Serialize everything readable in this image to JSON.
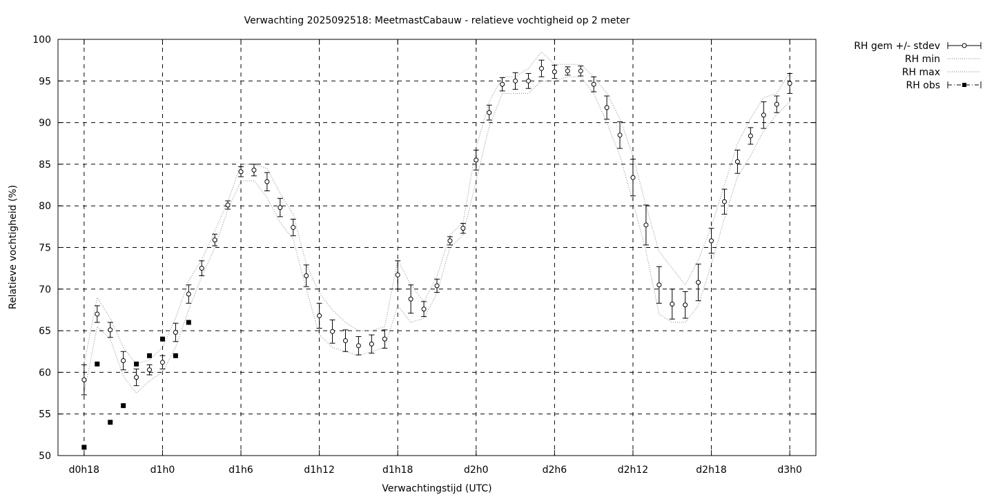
{
  "chart_data": {
    "type": "line",
    "title": "Verwachting 2025092518: MeetmastCabauw - relatieve vochtigheid op 2 meter",
    "xlabel": "Verwachtingstijd (UTC)",
    "ylabel": "Relatieve vochtigheid (%)",
    "xlim": [
      -2,
      56
    ],
    "ylim": [
      50,
      100
    ],
    "x_ticks": [
      {
        "value": 0,
        "label": "d0h18"
      },
      {
        "value": 6,
        "label": "d1h0"
      },
      {
        "value": 12,
        "label": "d1h6"
      },
      {
        "value": 18,
        "label": "d1h12"
      },
      {
        "value": 24,
        "label": "d1h18"
      },
      {
        "value": 30,
        "label": "d2h0"
      },
      {
        "value": 36,
        "label": "d2h6"
      },
      {
        "value": 42,
        "label": "d2h12"
      },
      {
        "value": 48,
        "label": "d2h18"
      },
      {
        "value": 54,
        "label": "d3h0"
      }
    ],
    "y_ticks": [
      50,
      55,
      60,
      65,
      70,
      75,
      80,
      85,
      90,
      95,
      100
    ],
    "grid": true,
    "legend_position": "outside-right",
    "series": [
      {
        "name": "RH gem +/- stdev",
        "style": "errorbars",
        "x": [
          0,
          1,
          2,
          3,
          4,
          5,
          6,
          7,
          8,
          9,
          10,
          11,
          12,
          13,
          14,
          15,
          16,
          17,
          18,
          19,
          20,
          21,
          22,
          23,
          24,
          25,
          26,
          27,
          28,
          29,
          30,
          31,
          32,
          33,
          34,
          35,
          36,
          37,
          38,
          39,
          40,
          41,
          42,
          43,
          44,
          45,
          46,
          47,
          48,
          49,
          50,
          51,
          52,
          53,
          54
        ],
        "mean": [
          59.1,
          67.0,
          65.1,
          61.4,
          59.4,
          60.3,
          61.2,
          64.8,
          69.4,
          72.5,
          75.9,
          80.1,
          84.1,
          84.3,
          82.9,
          79.8,
          77.4,
          71.6,
          66.8,
          64.9,
          63.8,
          63.2,
          63.4,
          64.0,
          71.7,
          68.8,
          67.6,
          70.4,
          75.8,
          77.3,
          85.5,
          91.2,
          94.6,
          95.0,
          95.0,
          96.5,
          96.1,
          96.2,
          96.2,
          94.6,
          91.8,
          88.5,
          83.4,
          77.7,
          70.5,
          68.2,
          68.1,
          70.8,
          75.8,
          80.5,
          85.3,
          88.4,
          90.9,
          92.2,
          94.7
        ],
        "stdev": [
          1.8,
          1.0,
          0.9,
          1.1,
          1.0,
          0.6,
          0.8,
          1.1,
          1.1,
          0.9,
          0.7,
          0.5,
          0.6,
          0.7,
          1.1,
          1.1,
          1.0,
          1.3,
          1.5,
          1.4,
          1.3,
          1.1,
          1.1,
          1.1,
          1.7,
          1.7,
          0.9,
          0.8,
          0.5,
          0.6,
          1.2,
          0.9,
          0.8,
          1.0,
          0.9,
          1.0,
          0.8,
          0.5,
          0.6,
          0.9,
          1.4,
          1.6,
          2.2,
          2.4,
          2.2,
          1.8,
          1.6,
          2.2,
          1.5,
          1.5,
          1.4,
          1.0,
          1.6,
          1.0,
          1.2
        ]
      },
      {
        "name": "RH min",
        "style": "dotted",
        "x": [
          0,
          1,
          2,
          3,
          4,
          5,
          6,
          7,
          8,
          9,
          10,
          11,
          12,
          13,
          14,
          15,
          16,
          17,
          18,
          19,
          20,
          21,
          22,
          23,
          24,
          25,
          26,
          27,
          28,
          29,
          30,
          31,
          32,
          33,
          34,
          35,
          36,
          37,
          38,
          39,
          40,
          41,
          42,
          43,
          44,
          45,
          46,
          47,
          48,
          49,
          50,
          51,
          52,
          53,
          54
        ],
        "values": [
          57.5,
          65.5,
          64.0,
          59.5,
          57.5,
          59.0,
          60.0,
          63.0,
          67.5,
          71.5,
          75.0,
          79.5,
          83.0,
          83.0,
          81.0,
          78.0,
          76.0,
          70.0,
          64.5,
          63.0,
          62.5,
          62.0,
          62.5,
          63.0,
          68.0,
          66.0,
          66.5,
          69.5,
          75.0,
          76.5,
          83.0,
          89.5,
          93.5,
          93.5,
          93.5,
          95.0,
          95.0,
          95.5,
          95.5,
          93.5,
          90.0,
          86.0,
          80.5,
          74.5,
          67.0,
          66.0,
          66.0,
          68.0,
          73.0,
          78.5,
          83.5,
          86.0,
          89.0,
          91.0,
          92.5
        ]
      },
      {
        "name": "RH max",
        "style": "dotted",
        "x": [
          0,
          1,
          2,
          3,
          4,
          5,
          6,
          7,
          8,
          9,
          10,
          11,
          12,
          13,
          14,
          15,
          16,
          17,
          18,
          19,
          20,
          21,
          22,
          23,
          24,
          25,
          26,
          27,
          28,
          29,
          30,
          31,
          32,
          33,
          34,
          35,
          36,
          37,
          38,
          39,
          40,
          41,
          42,
          43,
          44,
          45,
          46,
          47,
          48,
          49,
          50,
          51,
          52,
          53,
          54
        ],
        "values": [
          61.0,
          69.0,
          66.5,
          63.0,
          61.0,
          61.5,
          63.0,
          66.5,
          71.0,
          73.5,
          77.0,
          80.5,
          85.0,
          85.0,
          84.5,
          81.5,
          79.0,
          73.0,
          69.5,
          67.5,
          66.0,
          65.0,
          65.0,
          65.5,
          73.5,
          70.5,
          68.5,
          71.5,
          76.5,
          78.0,
          87.0,
          92.5,
          95.5,
          95.5,
          96.5,
          98.5,
          97.0,
          97.0,
          97.0,
          95.5,
          93.5,
          90.5,
          86.0,
          80.0,
          74.5,
          72.5,
          70.5,
          73.5,
          77.5,
          82.5,
          87.5,
          90.5,
          93.0,
          93.5,
          96.0
        ]
      },
      {
        "name": "RH obs",
        "style": "markers",
        "x": [
          0,
          1,
          2,
          3,
          4,
          5,
          6,
          7,
          8
        ],
        "values": [
          51,
          61,
          54,
          56,
          61,
          62,
          64,
          62,
          66
        ]
      }
    ]
  }
}
